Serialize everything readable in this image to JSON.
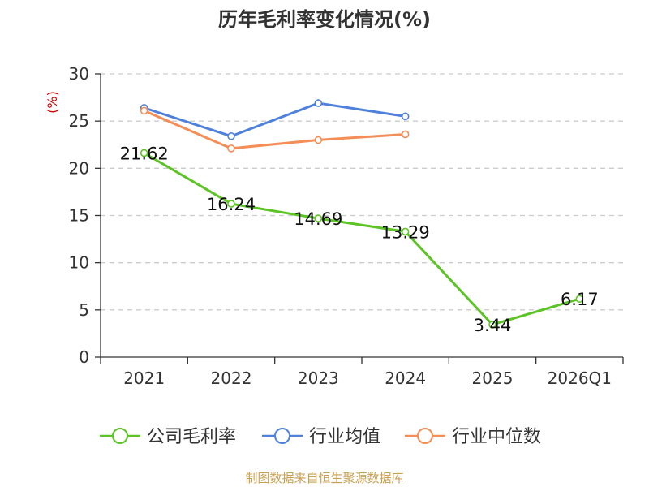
{
  "chart_data": {
    "type": "line",
    "title": "历年毛利率变化情况(%)",
    "ylabel": "(%)",
    "xlabel": "",
    "categories": [
      "2021",
      "2022",
      "2023",
      "2024",
      "2025",
      "2026Q1"
    ],
    "ylim": [
      0,
      30
    ],
    "yticks": [
      "0",
      "5",
      "10",
      "15",
      "20",
      "25",
      "30"
    ],
    "grid": true,
    "legend_position": "bottom",
    "series": [
      {
        "name": "公司毛利率",
        "color": "#5cc424",
        "values": [
          21.62,
          16.24,
          14.69,
          13.29,
          3.44,
          6.17
        ],
        "labels": [
          "21.62",
          "16.24",
          "14.69",
          "13.29",
          "3.44",
          "6.17"
        ]
      },
      {
        "name": "行业均值",
        "color": "#4f80dc",
        "values": [
          26.4,
          23.4,
          26.9,
          25.5,
          null,
          null
        ]
      },
      {
        "name": "行业中位数",
        "color": "#f58d57",
        "values": [
          26.1,
          22.1,
          23.0,
          23.6,
          null,
          null
        ]
      }
    ]
  },
  "source_text": "制图数据来自恒生聚源数据库",
  "colors": {
    "unit_label": "#cc0000",
    "source": "#c8a050",
    "grid": "#cccccc",
    "axis": "#333333"
  }
}
